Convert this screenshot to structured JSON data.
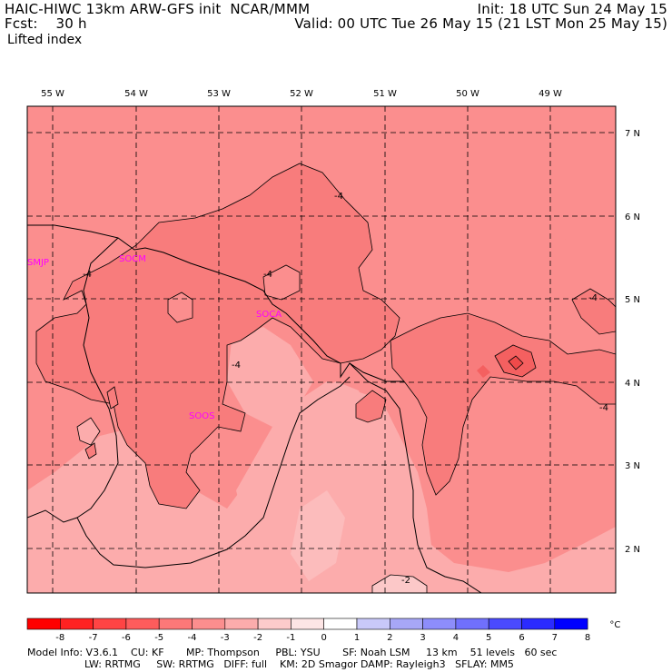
{
  "header": {
    "model_line": "HAIC-HIWC 13km ARW-GFS init  NCAR/MMM",
    "init_line": "Init: 18 UTC Sun 24 May 15",
    "fcst_label": "Fcst:    30 h",
    "valid_line": "Valid: 00 UTC Tue 26 May 15 (21 LST Mon 25 May 15)",
    "variable": "Lifted index"
  },
  "map": {
    "lon_labels": [
      "55 W",
      "54 W",
      "53 W",
      "52 W",
      "51 W",
      "50 W",
      "49 W"
    ],
    "lat_labels": [
      "7 N",
      "6 N",
      "5 N",
      "4 N",
      "3 N",
      "2 N"
    ],
    "stations": [
      "SMJP",
      "SOCM",
      "SOCA",
      "SOOS"
    ],
    "contour_labels": [
      "-4",
      "-4",
      "-4",
      "-4",
      "-4",
      "-4",
      "-2"
    ]
  },
  "colorbar": {
    "ticks": [
      "-8",
      "-7",
      "-6",
      "-5",
      "-4",
      "-3",
      "-2",
      "-1",
      "0",
      "1",
      "2",
      "3",
      "4",
      "5",
      "6",
      "7",
      "8"
    ],
    "unit": "°C",
    "colors": [
      "#ff0000",
      "#ff2222",
      "#ff4444",
      "#fe5c5c",
      "#fd7878",
      "#fb8e8e",
      "#fcacac",
      "#fdcbcb",
      "#fde5e5",
      "#ffffff",
      "#c9c9f9",
      "#a7a7f7",
      "#8d8dfb",
      "#7070fd",
      "#4a4afe",
      "#2b2bff",
      "#0000ff"
    ]
  },
  "colors": {
    "band_light": "#fcacac",
    "band_mid": "#fb8e8e",
    "band_dark": "#f87c7c",
    "band_darker": "#f86a6a",
    "band_pale": "#fcc8c8"
  },
  "footer": {
    "line1": "Model Info: V3.6.1    CU: KF       MP: Thompson     PBL: YSU       SF: Noah LSM     13 km    51 levels   60 sec",
    "line2": "                  LW: RRTMG     SW: RRTMG   DIFF: full    KM: 2D Smagor DAMP: Rayleigh3   SFLAY: MM5"
  }
}
